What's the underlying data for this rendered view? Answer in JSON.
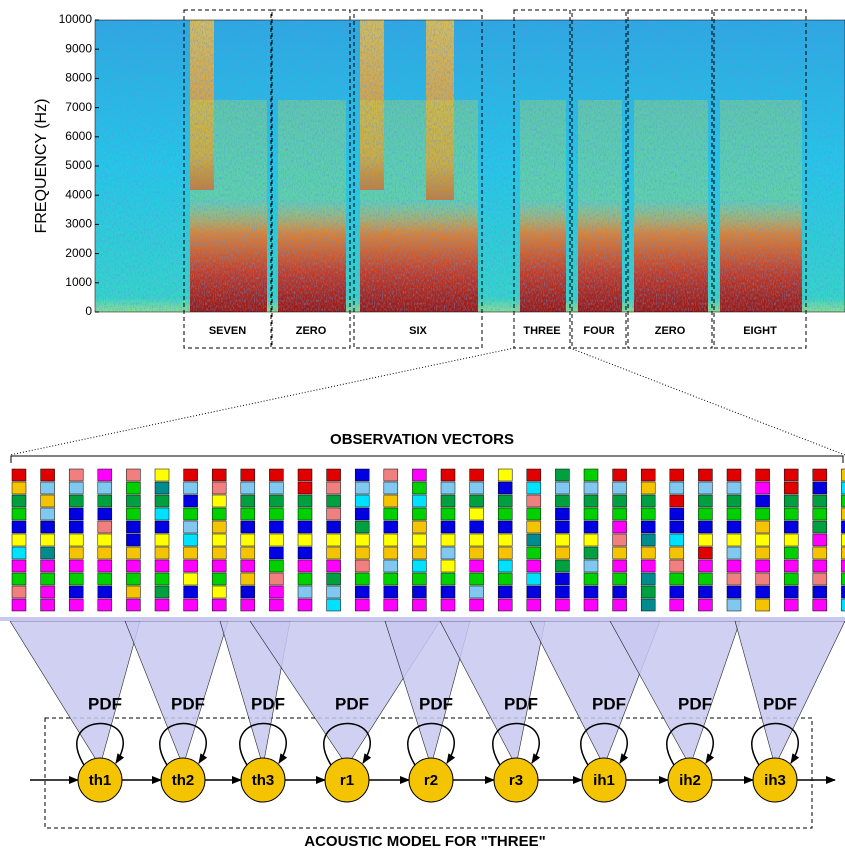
{
  "spectrogram": {
    "y_label": "FREQUENCY (Hz)",
    "y_ticks": [
      0,
      1000,
      2000,
      3000,
      4000,
      5000,
      6000,
      7000,
      8000,
      9000,
      10000
    ],
    "words": [
      "SEVEN",
      "ZERO",
      "SIX",
      "THREE",
      "FOUR",
      "ZERO",
      "EIGHT"
    ]
  },
  "observation_label": "OBSERVATION VECTORS",
  "pdf_labels": [
    "PDF",
    "PDF",
    "PDF",
    "PDF",
    "PDF",
    "PDF",
    "PDF",
    "PDF",
    "PDF"
  ],
  "states": [
    "th1",
    "th2",
    "th3",
    "r1",
    "r2",
    "r3",
    "ih1",
    "ih2",
    "ih3"
  ],
  "model_label": "ACOUSTIC MODEL FOR \"THREE\""
}
